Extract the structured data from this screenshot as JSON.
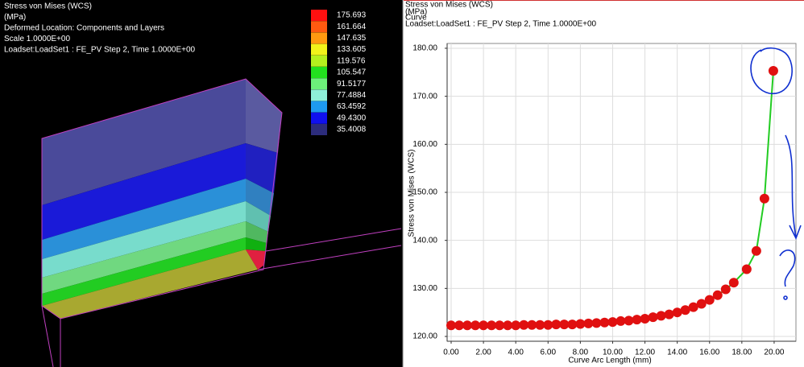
{
  "left_panel": {
    "header_lines": [
      "Stress von Mises (WCS)",
      "(MPa)",
      "Deformed Location: Components and Layers",
      "Scale  1.0000E+00",
      "Loadset:LoadSet1 :  FE_PV Step 2,  Time  1.0000E+00"
    ],
    "legend": {
      "labels": [
        "175.693",
        "161.664",
        "147.635",
        "133.605",
        "119.576",
        "105.547",
        "91.5177",
        "77.4884",
        "63.4592",
        "49.4300",
        "35.4008"
      ],
      "colors": [
        "#ff1010",
        "#ff5a10",
        "#ff9a10",
        "#f2f21a",
        "#b4f01e",
        "#22e01e",
        "#6cf07a",
        "#8ef0d8",
        "#1e9af0",
        "#1010ee",
        "#2c2c7c"
      ]
    }
  },
  "chart_data": {
    "type": "line",
    "title": "Stress von Mises (WCS)",
    "subtitle_lines": [
      "(MPa)",
      "Curve",
      "Loadset:LoadSet1 :  FE_PV Step 2,  Time  1.0000E+00"
    ],
    "x_label": "Curve Arc Length (mm)",
    "y_label": "Stress von Mises (WCS)",
    "line_color": "#22cc22",
    "marker_color": "#e01010",
    "grid": true,
    "x": [
      0,
      0.5,
      1,
      1.5,
      2,
      2.5,
      3,
      3.5,
      4,
      4.5,
      5,
      5.5,
      6,
      6.5,
      7,
      7.5,
      8,
      8.5,
      9,
      9.5,
      10,
      10.5,
      11,
      11.5,
      12,
      12.5,
      13,
      13.5,
      14,
      14.5,
      15,
      15.5,
      16,
      16.5,
      17,
      17.5,
      18.3,
      18.9,
      19.4,
      19.95
    ],
    "values": [
      122.3,
      122.3,
      122.3,
      122.3,
      122.3,
      122.3,
      122.3,
      122.3,
      122.3,
      122.4,
      122.4,
      122.4,
      122.4,
      122.5,
      122.5,
      122.5,
      122.6,
      122.7,
      122.8,
      122.9,
      123.0,
      123.2,
      123.3,
      123.5,
      123.7,
      124.0,
      124.3,
      124.6,
      125.0,
      125.5,
      126.1,
      126.8,
      127.6,
      128.6,
      129.8,
      131.2,
      134.0,
      137.8,
      148.7,
      175.3
    ],
    "xlim": [
      -0.25,
      21.35
    ],
    "ylim": [
      119,
      181
    ],
    "xticks": [
      {
        "value": 0,
        "label": "0.00"
      },
      {
        "value": 2,
        "label": "2.00"
      },
      {
        "value": 4,
        "label": "4.00"
      },
      {
        "value": 6,
        "label": "6.00"
      },
      {
        "value": 8,
        "label": "8.00"
      },
      {
        "value": 10,
        "label": "10.00"
      },
      {
        "value": 12,
        "label": "12.00"
      },
      {
        "value": 14,
        "label": "14.00"
      },
      {
        "value": 16,
        "label": "16.00"
      },
      {
        "value": 18,
        "label": "18.00"
      },
      {
        "value": 20,
        "label": "20.00"
      }
    ],
    "yticks": [
      {
        "value": 120,
        "label": "120.00"
      },
      {
        "value": 130,
        "label": "130.00"
      },
      {
        "value": 140,
        "label": "140.00"
      },
      {
        "value": 150,
        "label": "150.00"
      },
      {
        "value": 160,
        "label": "160.00"
      },
      {
        "value": 170,
        "label": "170.00"
      },
      {
        "value": 180,
        "label": "180.00"
      }
    ]
  }
}
